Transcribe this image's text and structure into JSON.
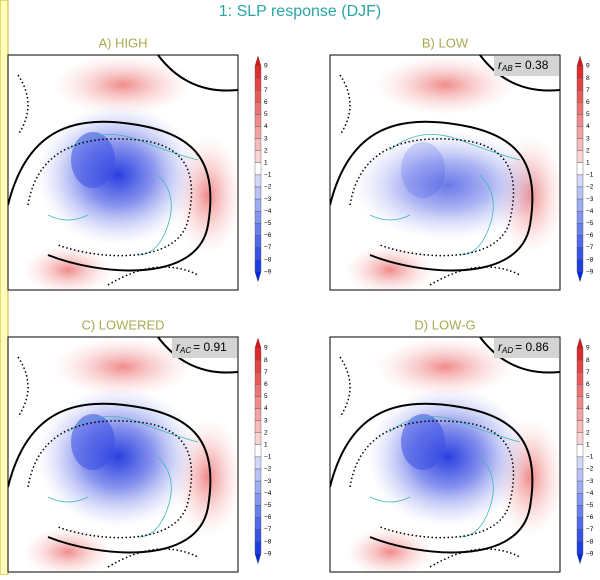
{
  "title": "1: SLP response (DJF)",
  "colorbar": {
    "labels": [
      "9",
      "8",
      "7",
      "6",
      "5",
      "4",
      "3",
      "2",
      "1",
      "−1",
      "−2",
      "−3",
      "−4",
      "−5",
      "−6",
      "−7",
      "−8",
      "−9"
    ]
  },
  "panels": [
    {
      "title": "A) HIGH"
    },
    {
      "title": "B) LOW",
      "correlation": {
        "symbol": "r",
        "subscript": "AB",
        "text": "= 0.38"
      }
    },
    {
      "title": "C) LOWERED",
      "correlation": {
        "symbol": "r",
        "subscript": "AC",
        "text": "= 0.91"
      }
    },
    {
      "title": "D) LOW-G",
      "correlation": {
        "symbol": "r",
        "subscript": "AD",
        "text": "= 0.86"
      }
    }
  ]
}
